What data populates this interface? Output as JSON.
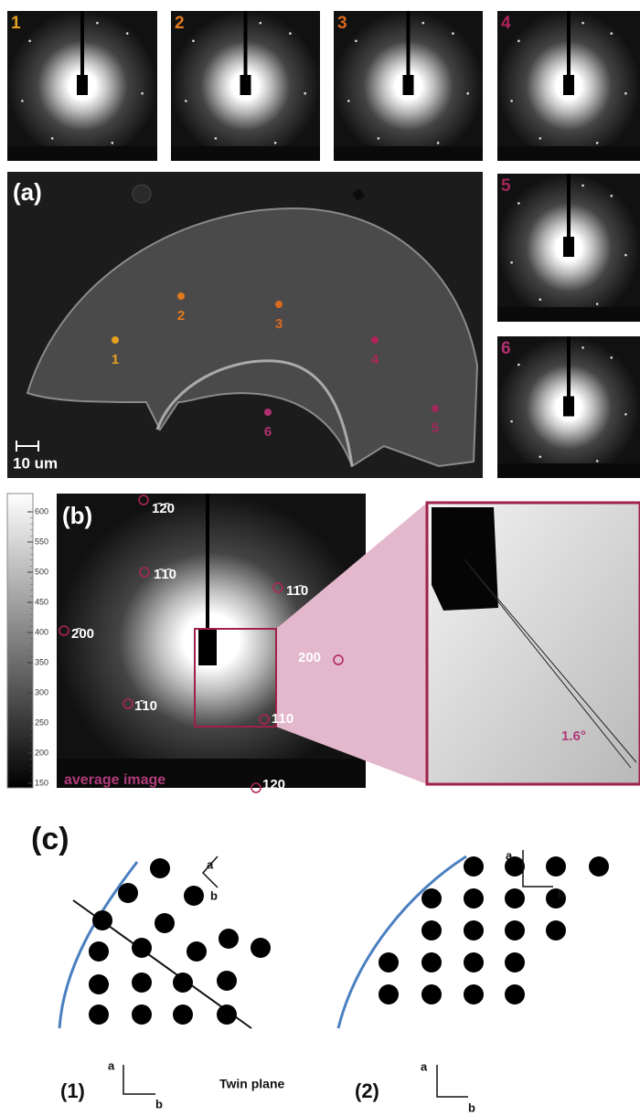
{
  "thumbnails": [
    "1",
    "2",
    "3",
    "4",
    "5",
    "6"
  ],
  "panel_a": {
    "label": "(a)",
    "points": [
      "1",
      "2",
      "3",
      "4",
      "5",
      "6"
    ],
    "scale_bar": "10 um"
  },
  "panel_b": {
    "label": "(b)",
    "colorbar_ticks": [
      150,
      200,
      250,
      300,
      350,
      400,
      450,
      500,
      550,
      600
    ],
    "reflections": [
      "1̄2̄0",
      "1̄1̄0",
      "11̄0",
      "2̄00",
      "200",
      "1̄10",
      "110",
      "120"
    ],
    "caption": "average image",
    "angle": "1.6°"
  },
  "panel_c": {
    "label": "(c)",
    "left": {
      "label": "(1)",
      "twin": "Twin plane",
      "axes": [
        "a",
        "b",
        "a",
        "b"
      ]
    },
    "right": {
      "label": "(2)",
      "axes": [
        "a",
        "b",
        "a",
        "b"
      ]
    }
  }
}
